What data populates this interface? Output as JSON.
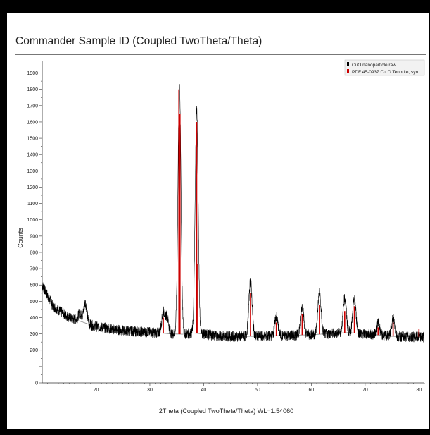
{
  "window": {
    "title": "Commander Sample ID (Coupled TwoTheta/Theta)"
  },
  "chart_data": {
    "type": "line",
    "title": "Commander Sample ID (Coupled TwoTheta/Theta)",
    "xlabel": "2Theta (Coupled TwoTheta/Theta) WL=1.54060",
    "ylabel": "Counts",
    "xlim": [
      10,
      81
    ],
    "ylim": [
      0,
      1950
    ],
    "x_ticks": [
      20,
      30,
      40,
      50,
      60,
      70,
      80
    ],
    "x_tick_labels": [
      "20",
      "30",
      "40",
      "50",
      "60",
      "70",
      "80"
    ],
    "y_ticks": [
      0,
      200,
      300,
      400,
      500,
      600,
      700,
      800,
      900,
      1000,
      1100,
      1200,
      1300,
      1400,
      1500,
      1600,
      1700,
      1800,
      1900
    ],
    "y_tick_labels": [
      "0",
      "200",
      "300",
      "400",
      "500",
      "600",
      "700",
      "800",
      "900",
      "1000",
      "1100",
      "1200",
      "1300",
      "1400",
      "1500",
      "1600",
      "1700",
      "1800",
      "1900"
    ],
    "legend_position": "top-right",
    "grid": false,
    "background": {
      "x": [
        10,
        12,
        15,
        20,
        25,
        30,
        32,
        34,
        36,
        38,
        40,
        42,
        45,
        50,
        55,
        60,
        65,
        67,
        70,
        75,
        81
      ],
      "y": [
        600,
        470,
        400,
        345,
        320,
        310,
        305,
        300,
        298,
        305,
        300,
        290,
        285,
        285,
        290,
        295,
        305,
        308,
        300,
        285,
        280
      ]
    },
    "series": [
      {
        "name": "CuO nanoparticle.raw",
        "color": "#000000",
        "style": "noisy line",
        "peaks": [
          {
            "x": 35.5,
            "y": 1830
          },
          {
            "x": 38.7,
            "y": 1680
          },
          {
            "x": 48.7,
            "y": 625
          },
          {
            "x": 53.5,
            "y": 405
          },
          {
            "x": 58.3,
            "y": 470
          },
          {
            "x": 61.5,
            "y": 550
          },
          {
            "x": 66.2,
            "y": 520
          },
          {
            "x": 68.0,
            "y": 510
          },
          {
            "x": 72.4,
            "y": 370
          },
          {
            "x": 75.2,
            "y": 395
          },
          {
            "x": 32.5,
            "y": 430
          },
          {
            "x": 33.2,
            "y": 400
          },
          {
            "x": 18.0,
            "y": 490
          },
          {
            "x": 17.0,
            "y": 430
          }
        ]
      },
      {
        "name": "PDF 45-0937 Cu O Tenorite, syn",
        "color": "#cc0000",
        "style": "reference sticks",
        "sticks": [
          {
            "x": 32.5,
            "y": 400
          },
          {
            "x": 35.4,
            "y": 1800
          },
          {
            "x": 35.6,
            "y": 1650
          },
          {
            "x": 38.7,
            "y": 1600
          },
          {
            "x": 38.9,
            "y": 730
          },
          {
            "x": 48.7,
            "y": 550
          },
          {
            "x": 53.5,
            "y": 370
          },
          {
            "x": 58.3,
            "y": 420
          },
          {
            "x": 61.5,
            "y": 480
          },
          {
            "x": 66.2,
            "y": 440
          },
          {
            "x": 68.0,
            "y": 470
          },
          {
            "x": 72.4,
            "y": 340
          },
          {
            "x": 75.2,
            "y": 370
          },
          {
            "x": 80.0,
            "y": 330
          }
        ]
      }
    ]
  }
}
